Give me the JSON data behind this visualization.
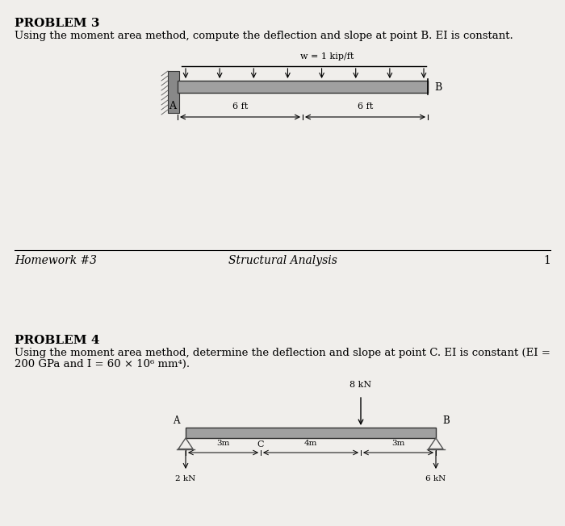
{
  "bg_color": "#f0eeeb",
  "title_p3": "PROBLEM 3",
  "desc_p3": "Using the moment area method, compute the deflection and slope at point B. EI is constant.",
  "title_p4": "PROBLEM 4",
  "desc_p4_line1": "Using the moment area method, determine the deflection and slope at point C. EI is constant (EI =",
  "desc_p4_line2": "200 GPa and I = 60 × 10⁶ mm⁴).",
  "footer_left": "Homework #3",
  "footer_center": "Structural Analysis",
  "footer_page": "1",
  "p3_beam_label_w": "w = 1 kip/ft",
  "p3_label_A": "A",
  "p3_label_B": "B",
  "p3_dim_left": "6 ft",
  "p3_dim_right": "6 ft",
  "p4_load_label": "8 kN",
  "p4_label_A": "A",
  "p4_label_B": "B",
  "p4_label_C": "C",
  "p4_reaction_left": "2 kN",
  "p4_reaction_right": "6 kN",
  "p4_dim1": "3m",
  "p4_dim2": "4m",
  "p4_dim3": "3m"
}
